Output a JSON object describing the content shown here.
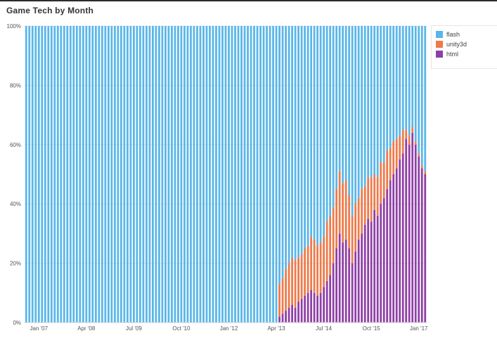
{
  "window": {
    "title": "Game Tech by Month"
  },
  "legend": {
    "items": [
      {
        "name": "flash",
        "color": "#5ab6e8"
      },
      {
        "name": "unity3d",
        "color": "#ee7a4b"
      },
      {
        "name": "html",
        "color": "#8e3fa6"
      }
    ]
  },
  "chart_data": {
    "type": "bar",
    "stacked": true,
    "title": "Game Tech by Month",
    "xlabel": "",
    "ylabel": "",
    "ylim": [
      0,
      100
    ],
    "y_ticks": [
      "0%",
      "20%",
      "40%",
      "60%",
      "80%",
      "100%"
    ],
    "x_tick_labels": [
      {
        "label": "Jan '07",
        "month_index": 0
      },
      {
        "label": "Apr '08",
        "month_index": 15
      },
      {
        "label": "Jul '09",
        "month_index": 30
      },
      {
        "label": "Oct '10",
        "month_index": 45
      },
      {
        "label": "Jan '12",
        "month_index": 60
      },
      {
        "label": "Apr '13",
        "month_index": 75
      },
      {
        "label": "Jul '14",
        "month_index": 90
      },
      {
        "label": "Oct '15",
        "month_index": 105
      },
      {
        "label": "Jan '17",
        "month_index": 120
      }
    ],
    "months": 127,
    "series": [
      {
        "name": "html",
        "values": [
          0,
          0,
          0,
          0,
          0,
          0,
          0,
          0,
          0,
          0,
          0,
          0,
          0,
          0,
          0,
          0,
          0,
          0,
          0,
          0,
          0,
          0,
          0,
          0,
          0,
          0,
          0,
          0,
          0,
          0,
          0,
          0,
          0,
          0,
          0,
          0,
          0,
          0,
          0,
          0,
          0,
          0,
          0,
          0,
          0,
          0,
          0,
          0,
          0,
          0,
          0,
          0,
          0,
          0,
          0,
          0,
          0,
          0,
          0,
          0,
          0,
          0,
          0,
          0,
          0,
          0,
          0,
          0,
          0,
          0,
          0,
          0,
          0,
          0,
          0,
          0,
          0,
          0,
          0,
          0,
          2,
          3,
          4,
          5,
          6,
          5,
          7,
          8,
          9,
          10,
          11,
          10,
          9,
          10,
          12,
          14,
          16,
          20,
          25,
          30,
          27,
          28,
          25,
          20,
          24,
          28,
          30,
          33,
          35,
          34,
          38,
          36,
          40,
          42,
          45,
          48,
          50,
          52,
          55,
          57,
          62,
          60,
          64,
          60,
          56,
          52,
          50
        ]
      },
      {
        "name": "unity3d",
        "values": [
          0,
          0,
          0,
          0,
          0,
          0,
          0,
          0,
          0,
          0,
          0,
          0,
          0,
          0,
          0,
          0,
          0,
          0,
          0,
          0,
          0,
          0,
          0,
          0,
          0,
          0,
          0,
          0,
          0,
          0,
          0,
          0,
          0,
          0,
          0,
          0,
          0,
          0,
          0,
          0,
          0,
          0,
          0,
          0,
          0,
          0,
          0,
          0,
          0,
          0,
          0,
          0,
          0,
          0,
          0,
          0,
          0,
          0,
          0,
          0,
          0,
          0,
          0,
          0,
          0,
          0,
          0,
          0,
          0,
          0,
          0,
          0,
          0,
          0,
          0,
          0,
          0,
          0,
          0,
          0,
          11,
          12,
          14,
          15,
          16,
          16,
          15,
          15,
          16,
          16,
          18,
          18,
          17,
          17,
          17,
          20,
          20,
          19,
          20,
          21,
          20,
          20,
          18,
          16,
          16,
          14,
          15,
          13,
          14,
          15,
          12,
          13,
          14,
          12,
          13,
          11,
          11,
          10,
          8,
          8,
          3,
          3,
          2,
          1,
          1,
          1,
          1
        ]
      },
      {
        "name": "flash",
        "values": [
          100,
          100,
          100,
          100,
          100,
          100,
          100,
          100,
          100,
          100,
          100,
          100,
          100,
          100,
          100,
          100,
          100,
          100,
          100,
          100,
          100,
          100,
          100,
          100,
          100,
          100,
          100,
          100,
          100,
          100,
          100,
          100,
          100,
          100,
          100,
          100,
          100,
          100,
          100,
          100,
          100,
          100,
          100,
          100,
          100,
          100,
          100,
          100,
          100,
          100,
          100,
          100,
          100,
          100,
          100,
          100,
          100,
          100,
          100,
          100,
          100,
          100,
          100,
          100,
          100,
          100,
          100,
          100,
          100,
          100,
          100,
          100,
          100,
          100,
          100,
          100,
          100,
          100,
          100,
          100,
          87,
          85,
          82,
          80,
          78,
          79,
          78,
          77,
          75,
          74,
          71,
          72,
          74,
          73,
          71,
          66,
          64,
          61,
          55,
          49,
          53,
          52,
          57,
          64,
          60,
          58,
          55,
          54,
          51,
          51,
          50,
          51,
          46,
          46,
          42,
          41,
          39,
          38,
          37,
          35,
          35,
          37,
          34,
          39,
          43,
          47,
          49
        ]
      }
    ]
  }
}
